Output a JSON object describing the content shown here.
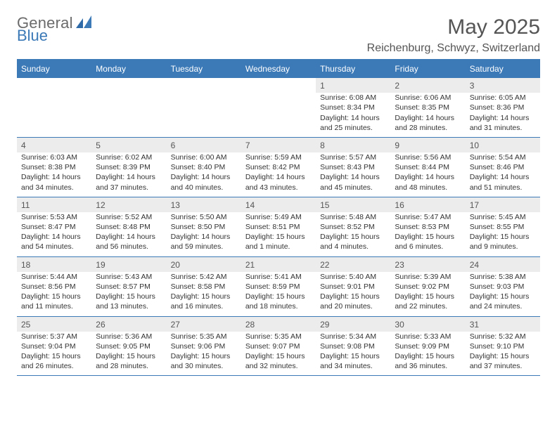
{
  "brand": {
    "word1": "General",
    "word2": "Blue"
  },
  "title": "May 2025",
  "location": "Reichenburg, Schwyz, Switzerland",
  "colors": {
    "accent": "#3b79b7",
    "header_text": "#ffffff",
    "daynum_bg": "#ececec",
    "body_text": "#333333",
    "muted_text": "#555555",
    "logo_gray": "#6b6b6b"
  },
  "weekdays": [
    "Sunday",
    "Monday",
    "Tuesday",
    "Wednesday",
    "Thursday",
    "Friday",
    "Saturday"
  ],
  "weeks": [
    [
      null,
      null,
      null,
      null,
      {
        "n": "1",
        "sr": "Sunrise: 6:08 AM",
        "ss": "Sunset: 8:34 PM",
        "d1": "Daylight: 14 hours",
        "d2": "and 25 minutes."
      },
      {
        "n": "2",
        "sr": "Sunrise: 6:06 AM",
        "ss": "Sunset: 8:35 PM",
        "d1": "Daylight: 14 hours",
        "d2": "and 28 minutes."
      },
      {
        "n": "3",
        "sr": "Sunrise: 6:05 AM",
        "ss": "Sunset: 8:36 PM",
        "d1": "Daylight: 14 hours",
        "d2": "and 31 minutes."
      }
    ],
    [
      {
        "n": "4",
        "sr": "Sunrise: 6:03 AM",
        "ss": "Sunset: 8:38 PM",
        "d1": "Daylight: 14 hours",
        "d2": "and 34 minutes."
      },
      {
        "n": "5",
        "sr": "Sunrise: 6:02 AM",
        "ss": "Sunset: 8:39 PM",
        "d1": "Daylight: 14 hours",
        "d2": "and 37 minutes."
      },
      {
        "n": "6",
        "sr": "Sunrise: 6:00 AM",
        "ss": "Sunset: 8:40 PM",
        "d1": "Daylight: 14 hours",
        "d2": "and 40 minutes."
      },
      {
        "n": "7",
        "sr": "Sunrise: 5:59 AM",
        "ss": "Sunset: 8:42 PM",
        "d1": "Daylight: 14 hours",
        "d2": "and 43 minutes."
      },
      {
        "n": "8",
        "sr": "Sunrise: 5:57 AM",
        "ss": "Sunset: 8:43 PM",
        "d1": "Daylight: 14 hours",
        "d2": "and 45 minutes."
      },
      {
        "n": "9",
        "sr": "Sunrise: 5:56 AM",
        "ss": "Sunset: 8:44 PM",
        "d1": "Daylight: 14 hours",
        "d2": "and 48 minutes."
      },
      {
        "n": "10",
        "sr": "Sunrise: 5:54 AM",
        "ss": "Sunset: 8:46 PM",
        "d1": "Daylight: 14 hours",
        "d2": "and 51 minutes."
      }
    ],
    [
      {
        "n": "11",
        "sr": "Sunrise: 5:53 AM",
        "ss": "Sunset: 8:47 PM",
        "d1": "Daylight: 14 hours",
        "d2": "and 54 minutes."
      },
      {
        "n": "12",
        "sr": "Sunrise: 5:52 AM",
        "ss": "Sunset: 8:48 PM",
        "d1": "Daylight: 14 hours",
        "d2": "and 56 minutes."
      },
      {
        "n": "13",
        "sr": "Sunrise: 5:50 AM",
        "ss": "Sunset: 8:50 PM",
        "d1": "Daylight: 14 hours",
        "d2": "and 59 minutes."
      },
      {
        "n": "14",
        "sr": "Sunrise: 5:49 AM",
        "ss": "Sunset: 8:51 PM",
        "d1": "Daylight: 15 hours",
        "d2": "and 1 minute."
      },
      {
        "n": "15",
        "sr": "Sunrise: 5:48 AM",
        "ss": "Sunset: 8:52 PM",
        "d1": "Daylight: 15 hours",
        "d2": "and 4 minutes."
      },
      {
        "n": "16",
        "sr": "Sunrise: 5:47 AM",
        "ss": "Sunset: 8:53 PM",
        "d1": "Daylight: 15 hours",
        "d2": "and 6 minutes."
      },
      {
        "n": "17",
        "sr": "Sunrise: 5:45 AM",
        "ss": "Sunset: 8:55 PM",
        "d1": "Daylight: 15 hours",
        "d2": "and 9 minutes."
      }
    ],
    [
      {
        "n": "18",
        "sr": "Sunrise: 5:44 AM",
        "ss": "Sunset: 8:56 PM",
        "d1": "Daylight: 15 hours",
        "d2": "and 11 minutes."
      },
      {
        "n": "19",
        "sr": "Sunrise: 5:43 AM",
        "ss": "Sunset: 8:57 PM",
        "d1": "Daylight: 15 hours",
        "d2": "and 13 minutes."
      },
      {
        "n": "20",
        "sr": "Sunrise: 5:42 AM",
        "ss": "Sunset: 8:58 PM",
        "d1": "Daylight: 15 hours",
        "d2": "and 16 minutes."
      },
      {
        "n": "21",
        "sr": "Sunrise: 5:41 AM",
        "ss": "Sunset: 8:59 PM",
        "d1": "Daylight: 15 hours",
        "d2": "and 18 minutes."
      },
      {
        "n": "22",
        "sr": "Sunrise: 5:40 AM",
        "ss": "Sunset: 9:01 PM",
        "d1": "Daylight: 15 hours",
        "d2": "and 20 minutes."
      },
      {
        "n": "23",
        "sr": "Sunrise: 5:39 AM",
        "ss": "Sunset: 9:02 PM",
        "d1": "Daylight: 15 hours",
        "d2": "and 22 minutes."
      },
      {
        "n": "24",
        "sr": "Sunrise: 5:38 AM",
        "ss": "Sunset: 9:03 PM",
        "d1": "Daylight: 15 hours",
        "d2": "and 24 minutes."
      }
    ],
    [
      {
        "n": "25",
        "sr": "Sunrise: 5:37 AM",
        "ss": "Sunset: 9:04 PM",
        "d1": "Daylight: 15 hours",
        "d2": "and 26 minutes."
      },
      {
        "n": "26",
        "sr": "Sunrise: 5:36 AM",
        "ss": "Sunset: 9:05 PM",
        "d1": "Daylight: 15 hours",
        "d2": "and 28 minutes."
      },
      {
        "n": "27",
        "sr": "Sunrise: 5:35 AM",
        "ss": "Sunset: 9:06 PM",
        "d1": "Daylight: 15 hours",
        "d2": "and 30 minutes."
      },
      {
        "n": "28",
        "sr": "Sunrise: 5:35 AM",
        "ss": "Sunset: 9:07 PM",
        "d1": "Daylight: 15 hours",
        "d2": "and 32 minutes."
      },
      {
        "n": "29",
        "sr": "Sunrise: 5:34 AM",
        "ss": "Sunset: 9:08 PM",
        "d1": "Daylight: 15 hours",
        "d2": "and 34 minutes."
      },
      {
        "n": "30",
        "sr": "Sunrise: 5:33 AM",
        "ss": "Sunset: 9:09 PM",
        "d1": "Daylight: 15 hours",
        "d2": "and 36 minutes."
      },
      {
        "n": "31",
        "sr": "Sunrise: 5:32 AM",
        "ss": "Sunset: 9:10 PM",
        "d1": "Daylight: 15 hours",
        "d2": "and 37 minutes."
      }
    ]
  ]
}
